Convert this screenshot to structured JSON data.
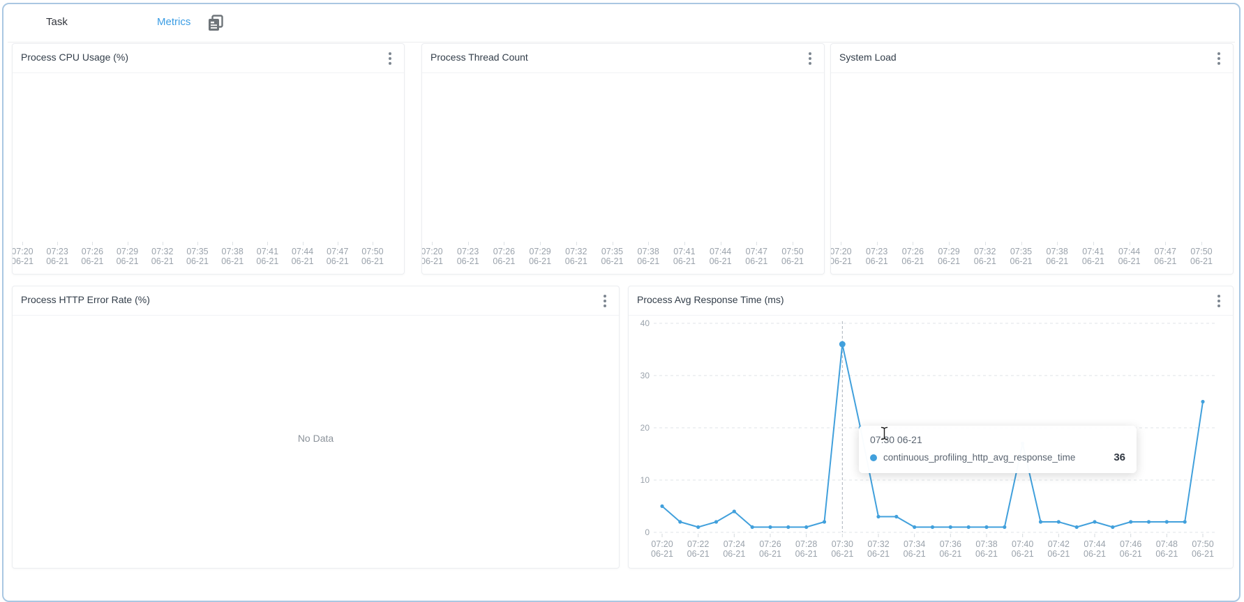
{
  "tabs": {
    "task": "Task",
    "metrics": "Metrics"
  },
  "panels": {
    "cpu": {
      "title": "Process CPU Usage (%)"
    },
    "threads": {
      "title": "Process Thread Count"
    },
    "load": {
      "title": "System Load"
    },
    "error_rate": {
      "title": "Process HTTP Error Rate (%)",
      "empty_text": "No Data"
    },
    "response": {
      "title": "Process Avg Response Time (ms)"
    }
  },
  "top_axis": {
    "times": [
      "07:20",
      "07:23",
      "07:26",
      "07:29",
      "07:32",
      "07:35",
      "07:38",
      "07:41",
      "07:44",
      "07:47",
      "07:50"
    ],
    "date": "06-21"
  },
  "chart_data": {
    "type": "line",
    "title": "Process Avg Response Time (ms)",
    "x": [
      "07:20",
      "07:21",
      "07:22",
      "07:23",
      "07:24",
      "07:25",
      "07:26",
      "07:27",
      "07:28",
      "07:29",
      "07:30",
      "07:31",
      "07:32",
      "07:33",
      "07:34",
      "07:35",
      "07:36",
      "07:37",
      "07:38",
      "07:39",
      "07:40",
      "07:41",
      "07:42",
      "07:43",
      "07:44",
      "07:45",
      "07:46",
      "07:47",
      "07:48",
      "07:49",
      "07:50"
    ],
    "x_date": "06-21",
    "x_label_every": 2,
    "series": [
      {
        "name": "continuous_profiling_http_avg_response_time",
        "values": [
          5,
          2,
          1,
          2,
          4,
          1,
          1,
          1,
          1,
          2,
          36,
          20,
          3,
          3,
          1,
          1,
          1,
          1,
          1,
          1,
          17,
          2,
          2,
          1,
          2,
          1,
          2,
          2,
          2,
          2,
          25
        ]
      }
    ],
    "ylim": [
      0,
      40
    ],
    "yticks": [
      0,
      10,
      20,
      30,
      40
    ],
    "grid": "dashed-horizontal",
    "legend_position": "none",
    "line_color": "#41a0dc",
    "hover": {
      "index": 10,
      "time": "07:30",
      "value": 36
    }
  },
  "tooltip": {
    "header": "07:30 06-21",
    "series": "continuous_profiling_http_avg_response_time",
    "value": "36",
    "dot_color": "#41a0dc"
  },
  "colors": {
    "accent_blue": "#3b9de4",
    "line_blue": "#41a0dc",
    "frame_border": "#a9c7e2",
    "axis_text": "#9aa2ab"
  }
}
